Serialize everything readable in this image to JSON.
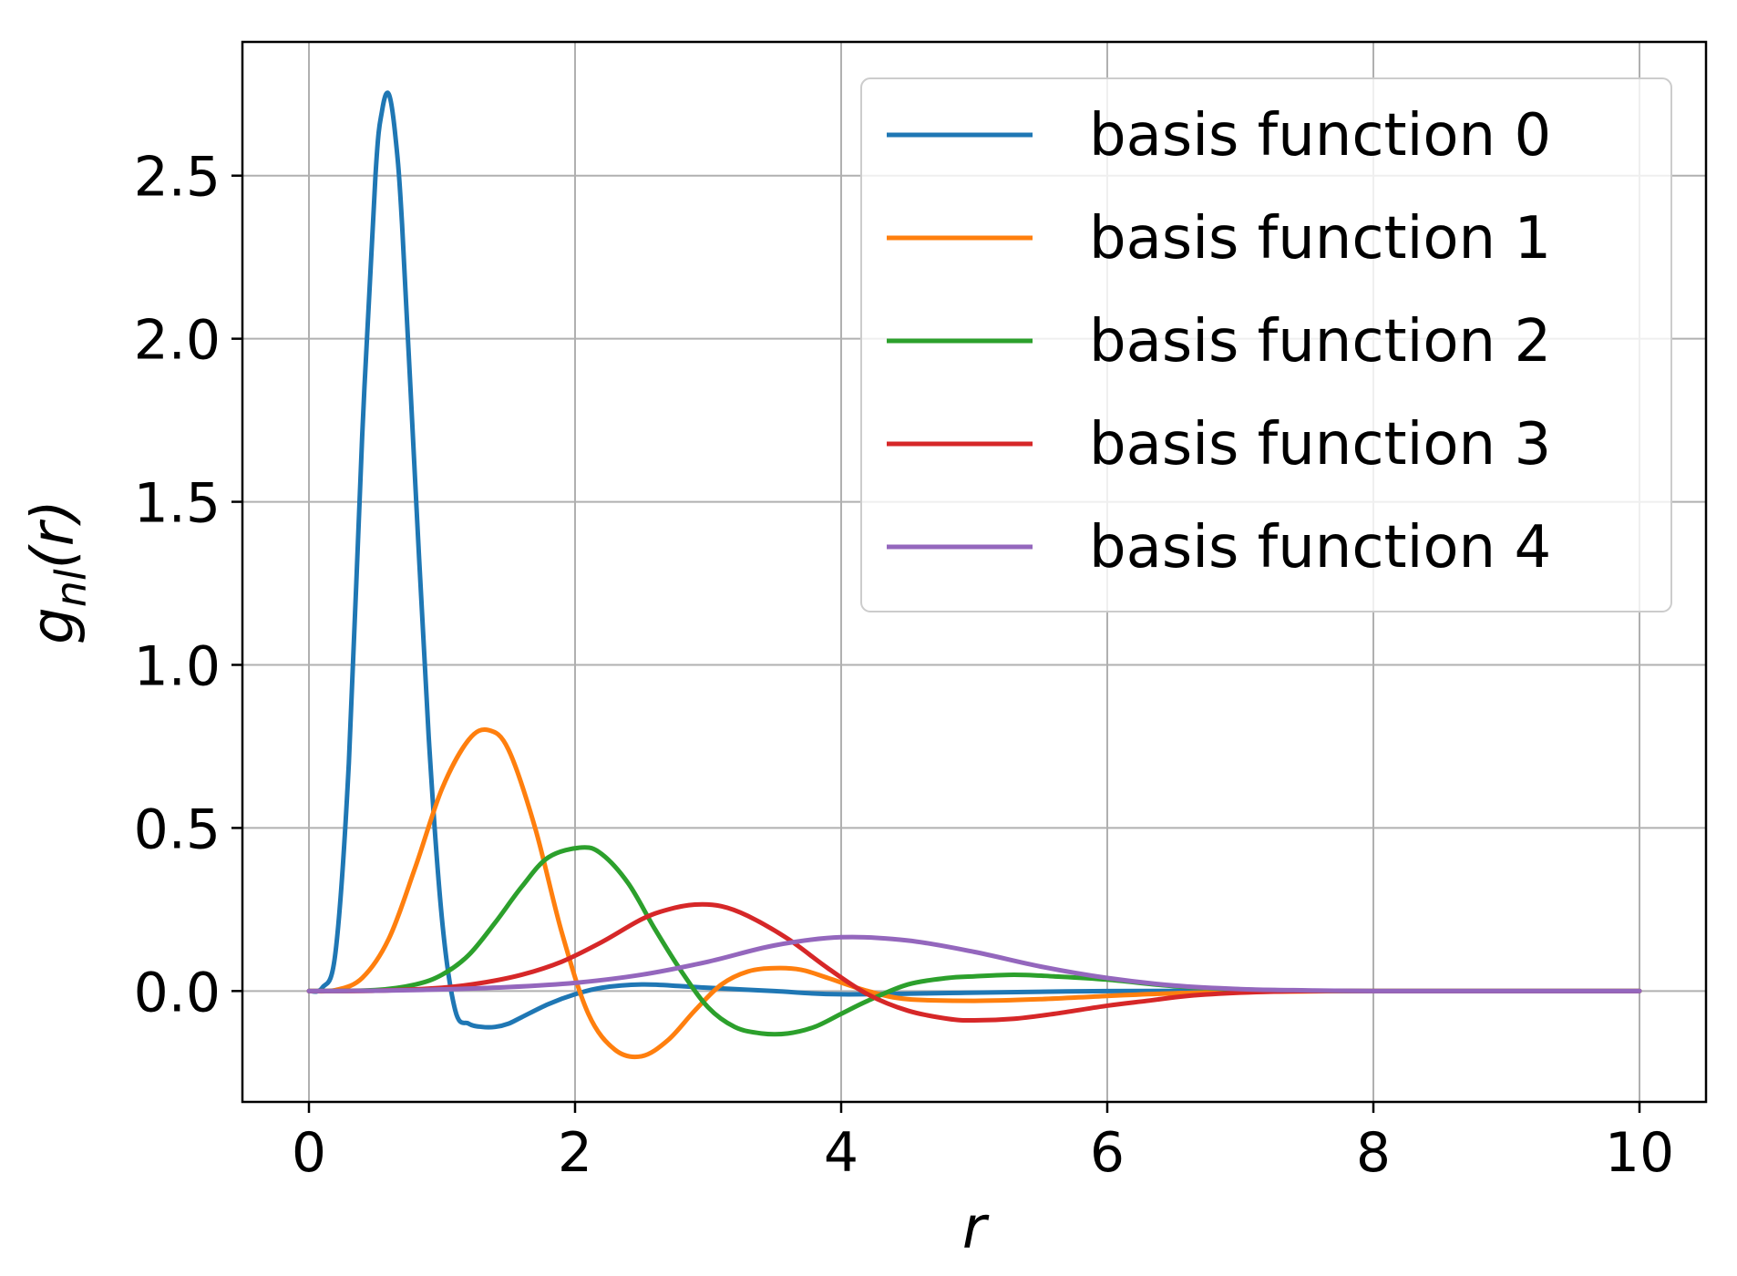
{
  "chart_data": {
    "type": "line",
    "xlabel": "r",
    "ylabel_main": "g",
    "ylabel_sub": "nl",
    "ylabel_arg": "(r)",
    "xlim": [
      -0.5,
      10.5
    ],
    "ylim": [
      -0.34,
      2.91
    ],
    "xticks": [
      0,
      2,
      4,
      6,
      8,
      10
    ],
    "xtick_labels": [
      "0",
      "2",
      "4",
      "6",
      "8",
      "10"
    ],
    "yticks": [
      0.0,
      0.5,
      1.0,
      1.5,
      2.0,
      2.5
    ],
    "ytick_labels": [
      "0.0",
      "0.5",
      "1.0",
      "1.5",
      "2.0",
      "2.5"
    ],
    "grid": true,
    "legend_position": "top-right",
    "series": [
      {
        "name": "basis function 0",
        "color": "#1f77b4",
        "x": [
          0,
          0.1,
          0.2,
          0.3,
          0.4,
          0.5,
          0.55,
          0.6,
          0.65,
          0.7,
          0.8,
          0.9,
          1.0,
          1.1,
          1.2,
          1.3,
          1.4,
          1.5,
          1.6,
          1.8,
          2.0,
          2.2,
          2.5,
          2.8,
          3.0,
          3.5,
          4.0,
          5.0,
          6.0,
          7.0,
          8.0,
          9.0,
          10.0
        ],
        "values": [
          0,
          0.01,
          0.12,
          0.7,
          1.7,
          2.5,
          2.7,
          2.75,
          2.62,
          2.35,
          1.55,
          0.78,
          0.22,
          -0.06,
          -0.1,
          -0.11,
          -0.11,
          -0.1,
          -0.08,
          -0.04,
          -0.01,
          0.01,
          0.02,
          0.015,
          0.01,
          0.0,
          -0.01,
          -0.005,
          0,
          0,
          0,
          0,
          0
        ]
      },
      {
        "name": "basis function 1",
        "color": "#ff7f0e",
        "x": [
          0,
          0.2,
          0.4,
          0.6,
          0.8,
          1.0,
          1.2,
          1.35,
          1.5,
          1.7,
          1.9,
          2.1,
          2.3,
          2.5,
          2.7,
          2.9,
          3.1,
          3.3,
          3.5,
          3.7,
          3.9,
          4.2,
          4.5,
          5.0,
          5.5,
          6.0,
          6.5,
          7.0,
          7.5,
          8.0,
          9.0,
          10.0
        ],
        "values": [
          0,
          0.003,
          0.04,
          0.16,
          0.38,
          0.62,
          0.77,
          0.8,
          0.74,
          0.5,
          0.18,
          -0.07,
          -0.18,
          -0.2,
          -0.15,
          -0.06,
          0.02,
          0.06,
          0.07,
          0.065,
          0.04,
          0.0,
          -0.025,
          -0.03,
          -0.025,
          -0.015,
          -0.007,
          -0.003,
          -0.001,
          0,
          0,
          0
        ]
      },
      {
        "name": "basis function 2",
        "color": "#2ca02c",
        "x": [
          0,
          0.5,
          0.8,
          1.0,
          1.2,
          1.4,
          1.6,
          1.8,
          2.05,
          2.2,
          2.4,
          2.6,
          2.8,
          3.0,
          3.2,
          3.4,
          3.6,
          3.8,
          4.0,
          4.2,
          4.5,
          4.8,
          5.0,
          5.3,
          5.6,
          6.0,
          6.5,
          7.0,
          7.5,
          8.0,
          9.0,
          10.0
        ],
        "values": [
          0,
          0.003,
          0.02,
          0.05,
          0.11,
          0.21,
          0.32,
          0.41,
          0.44,
          0.42,
          0.33,
          0.19,
          0.06,
          -0.05,
          -0.11,
          -0.13,
          -0.13,
          -0.11,
          -0.07,
          -0.03,
          0.02,
          0.04,
          0.045,
          0.05,
          0.045,
          0.035,
          0.015,
          0.005,
          0.001,
          0,
          0,
          0
        ]
      },
      {
        "name": "basis function 3",
        "color": "#d62728",
        "x": [
          0,
          0.5,
          1.0,
          1.3,
          1.6,
          1.9,
          2.2,
          2.5,
          2.7,
          2.9,
          3.1,
          3.3,
          3.6,
          3.9,
          4.2,
          4.5,
          4.8,
          5.0,
          5.3,
          5.6,
          6.0,
          6.3,
          6.6,
          7.0,
          7.5,
          8.0,
          9.0,
          10.0
        ],
        "values": [
          0,
          0.001,
          0.01,
          0.025,
          0.05,
          0.09,
          0.15,
          0.22,
          0.25,
          0.265,
          0.26,
          0.23,
          0.16,
          0.07,
          -0.01,
          -0.06,
          -0.085,
          -0.09,
          -0.085,
          -0.07,
          -0.045,
          -0.03,
          -0.015,
          -0.005,
          0,
          0,
          0,
          0
        ]
      },
      {
        "name": "basis function 4",
        "color": "#9467bd",
        "x": [
          0,
          0.5,
          1.0,
          1.5,
          2.0,
          2.5,
          3.0,
          3.5,
          4.0,
          4.5,
          5.0,
          5.5,
          6.0,
          6.5,
          7.0,
          7.5,
          8.0,
          9.0,
          10.0
        ],
        "values": [
          0,
          0.001,
          0.005,
          0.012,
          0.025,
          0.05,
          0.09,
          0.14,
          0.165,
          0.155,
          0.12,
          0.075,
          0.04,
          0.017,
          0.006,
          0.002,
          0.0,
          0,
          0
        ]
      }
    ]
  }
}
